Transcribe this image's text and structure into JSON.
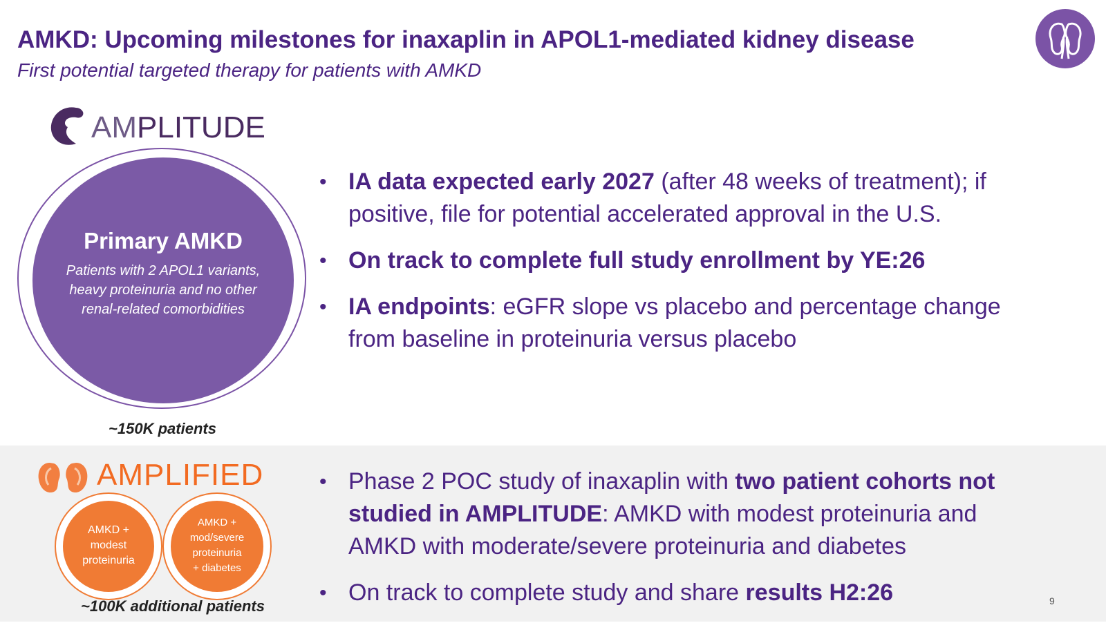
{
  "slide": {
    "title": "AMKD: Upcoming milestones for inaxaplin in APOL1-mediated kidney disease",
    "subtitle": "First potential targeted therapy for patients with AMKD",
    "page_number": "9"
  },
  "colors": {
    "brand_purple": "#4b2483",
    "disc_purple": "#7b5aa6",
    "accent_orange": "#f07b34",
    "band_gray": "#f1f1f1"
  },
  "icons": {
    "corner": "kidney-logo-icon",
    "amplitude": "amplitude-kidney-icon",
    "amplified": "amplified-kidneys-icon"
  },
  "amplitude": {
    "logo_prefix": "AM",
    "logo_suffix": "PLITUDE",
    "disc_heading": "Primary AMKD",
    "disc_body": "Patients with 2 APOL1 variants, heavy proteinuria and no other renal-related comorbidities",
    "patients": "~150K patients",
    "bullets": [
      {
        "bold": "IA data expected early 2027",
        "rest": " (after 48 weeks of treatment); if positive, file for potential accelerated approval in the U.S."
      },
      {
        "bold": "On track to complete full study enrollment by YE:26",
        "rest": ""
      },
      {
        "bold": "IA endpoints",
        "rest": ": eGFR slope vs placebo and percentage change from baseline in proteinuria versus placebo"
      }
    ]
  },
  "amplified": {
    "logo_prefix": "AM",
    "logo_suffix": "PLIFIED",
    "cohort_1": [
      "AMKD +",
      "modest",
      "proteinuria"
    ],
    "cohort_2": [
      "AMKD +",
      "mod/severe",
      "proteinuria",
      "+ diabetes"
    ],
    "patients": "~100K additional  patients",
    "bullet_1": {
      "pre": "Phase 2 POC study of inaxaplin with ",
      "bold": "two patient cohorts not studied in AMPLITUDE",
      "post": ": AMKD with modest proteinuria and AMKD with moderate/severe proteinuria and diabetes"
    },
    "bullet_2": {
      "pre": "On track to complete study and share ",
      "bold": "results H2:26",
      "post": ""
    }
  }
}
